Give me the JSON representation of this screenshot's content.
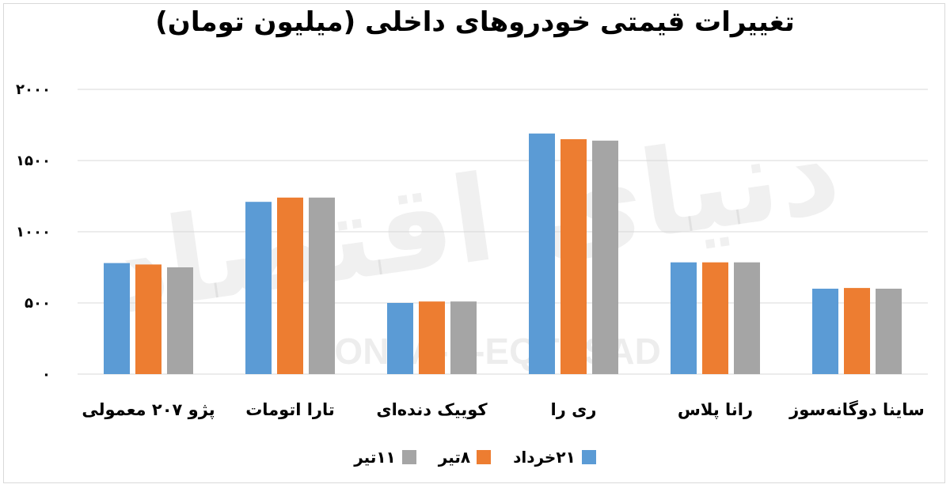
{
  "title": "تغییرات قیمتی خودروهای داخلی (میلیون تومان)",
  "watermark": {
    "text": "DONYA-E-EQTESAD",
    "logo": "دنیای اقتصاد"
  },
  "colors": {
    "series": [
      "#5b9bd5",
      "#ed7d31",
      "#a5a5a5"
    ],
    "grid": "#d9d9d9",
    "axis_text": "#000000"
  },
  "chart_data": {
    "type": "bar",
    "title": "تغییرات قیمتی خودروهای داخلی (میلیون تومان)",
    "categories": [
      "پژو ۲۰۷ معمولی",
      "تارا اتومات",
      "کوییک دنده‌ای",
      "ری را",
      "رانا پلاس",
      "ساینا دوگانه‌سوز"
    ],
    "series": [
      {
        "name": "۲۱خرداد",
        "values": [
          780,
          1210,
          500,
          1690,
          785,
          600
        ]
      },
      {
        "name": "۸تیر",
        "values": [
          770,
          1240,
          510,
          1650,
          785,
          605
        ]
      },
      {
        "name": "۱۱تیر",
        "values": [
          750,
          1240,
          510,
          1640,
          785,
          600
        ]
      }
    ],
    "ylim": [
      0,
      2000
    ],
    "yticks": [
      0,
      500,
      1000,
      1500,
      2000
    ],
    "ytick_labels": [
      "۰",
      "۵۰۰",
      "۱۰۰۰",
      "۱۵۰۰",
      "۲۰۰۰"
    ],
    "grid": true,
    "legend_position": "bottom"
  }
}
